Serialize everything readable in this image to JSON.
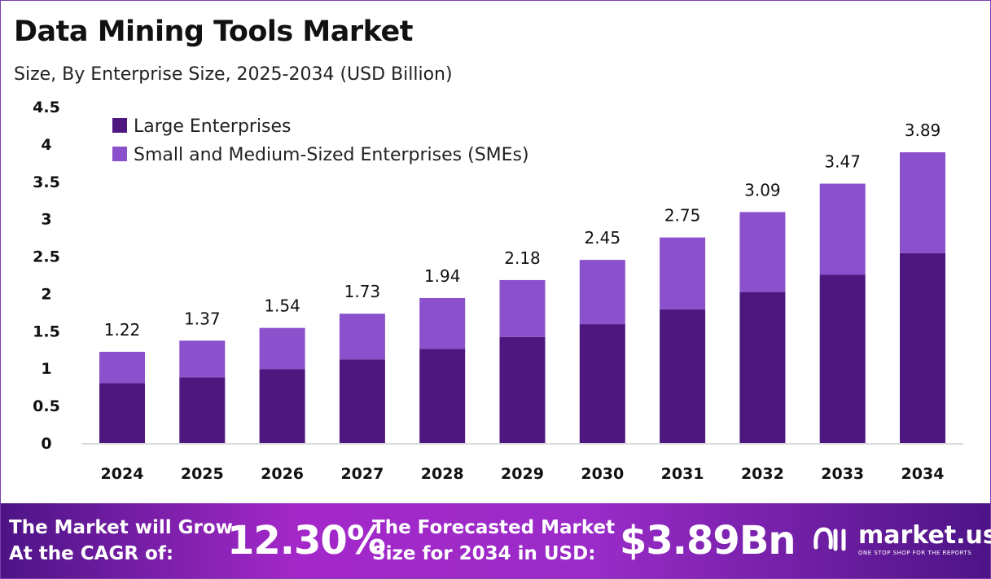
{
  "title": "Data Mining Tools Market",
  "subtitle": "Size, By Enterprise Size, 2025-2034 (USD Billion)",
  "chart_data": {
    "type": "bar",
    "stacked": true,
    "categories": [
      "2024",
      "2025",
      "2026",
      "2027",
      "2028",
      "2029",
      "2030",
      "2031",
      "2032",
      "2033",
      "2034"
    ],
    "series": [
      {
        "name": "Large Enterprises",
        "color": "#4e1780",
        "values": [
          0.8,
          0.88,
          0.99,
          1.12,
          1.26,
          1.42,
          1.59,
          1.79,
          2.02,
          2.25,
          2.54
        ]
      },
      {
        "name": "Small and Medium-Sized Enterprises (SMEs)",
        "color": "#8b50cc",
        "values": [
          0.42,
          0.49,
          0.55,
          0.61,
          0.68,
          0.76,
          0.86,
          0.96,
          1.07,
          1.22,
          1.35
        ]
      }
    ],
    "totals": [
      "1.22",
      "1.37",
      "1.54",
      "1.73",
      "1.94",
      "2.18",
      "2.45",
      "2.75",
      "3.09",
      "3.47",
      "3.89"
    ],
    "ylim": [
      0,
      4.5
    ],
    "yticks": [
      "0",
      "0.5",
      "1",
      "1.5",
      "2",
      "2.5",
      "3",
      "3.5",
      "4",
      "4.5"
    ],
    "grid": false,
    "legend": "top-left"
  },
  "banner": {
    "cagr_label_1": "The Market will Grow",
    "cagr_label_2": "At the CAGR of:",
    "cagr_value": "12.30%",
    "forecast_label_1": "The Forecasted Market",
    "forecast_label_2": "Size for 2034 in USD:",
    "forecast_value": "$3.89Bn",
    "logo_name": "market.us",
    "logo_tagline": "ONE STOP SHOP FOR THE REPORTS"
  }
}
